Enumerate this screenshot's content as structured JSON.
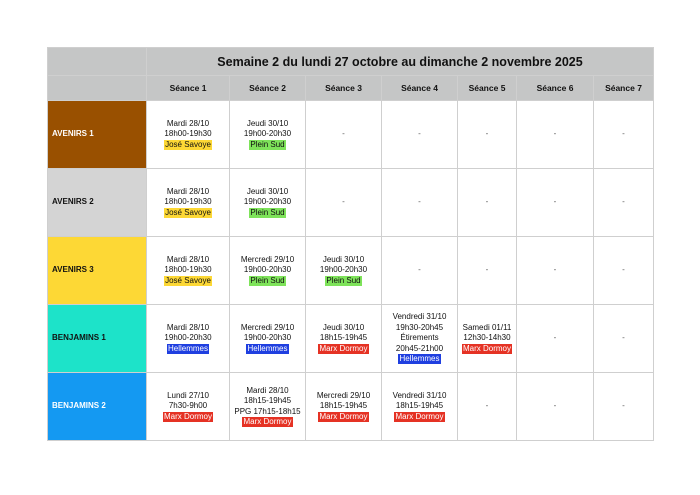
{
  "title": "Semaine 2 du lundi 27 octobre au dimanche 2 novembre 2025",
  "columns": [
    "Séance 1",
    "Séance 2",
    "Séance 3",
    "Séance 4",
    "Séance 5",
    "Séance 6",
    "Séance 7"
  ],
  "venue_colors": {
    "José Savoye": {
      "bg": "#fdd835",
      "fg": "#111111"
    },
    "Plein Sud": {
      "bg": "#7ee35a",
      "fg": "#111111"
    },
    "Hellemmes": {
      "bg": "#1f3fe0",
      "fg": "#ffffff"
    },
    "Marx Dormoy": {
      "bg": "#e53224",
      "fg": "#ffffff"
    }
  },
  "rows": [
    {
      "group": "AVENIRS 1",
      "color": "#995000",
      "light_text": true,
      "alt": false,
      "sessions": [
        {
          "lines": [
            "Mardi 28/10",
            "18h00-19h30"
          ],
          "venue": "José Savoye"
        },
        {
          "lines": [
            "Jeudi 30/10",
            "19h00-20h30"
          ],
          "venue": "Plein Sud"
        },
        {
          "lines": [
            "-"
          ],
          "venue": ""
        },
        {
          "lines": [
            "-"
          ],
          "venue": ""
        },
        {
          "lines": [
            "-"
          ],
          "venue": ""
        },
        {
          "lines": [
            "-"
          ],
          "venue": ""
        },
        {
          "lines": [
            "-"
          ],
          "venue": ""
        }
      ]
    },
    {
      "group": "AVENIRS 2",
      "color": "#d4d4d4",
      "light_text": false,
      "alt": true,
      "sessions": [
        {
          "lines": [
            "Mardi 28/10",
            "18h00-19h30"
          ],
          "venue": "José Savoye"
        },
        {
          "lines": [
            "Jeudi 30/10",
            "19h00-20h30"
          ],
          "venue": "Plein Sud"
        },
        {
          "lines": [
            "-"
          ],
          "venue": ""
        },
        {
          "lines": [
            "-"
          ],
          "venue": ""
        },
        {
          "lines": [
            "-"
          ],
          "venue": ""
        },
        {
          "lines": [
            "-"
          ],
          "venue": ""
        },
        {
          "lines": [
            "-"
          ],
          "venue": ""
        }
      ]
    },
    {
      "group": "AVENIRS 3",
      "color": "#fdd835",
      "light_text": false,
      "alt": false,
      "sessions": [
        {
          "lines": [
            "Mardi 28/10",
            "18h00-19h30"
          ],
          "venue": "José Savoye"
        },
        {
          "lines": [
            "Mercredi 29/10",
            "19h00-20h30"
          ],
          "venue": "Plein Sud"
        },
        {
          "lines": [
            "Jeudi 30/10",
            "19h00-20h30"
          ],
          "venue": "Plein Sud"
        },
        {
          "lines": [
            "-"
          ],
          "venue": ""
        },
        {
          "lines": [
            "-"
          ],
          "venue": ""
        },
        {
          "lines": [
            "-"
          ],
          "venue": ""
        },
        {
          "lines": [
            "-"
          ],
          "venue": ""
        }
      ]
    },
    {
      "group": "BENJAMINS 1",
      "color": "#1de3c9",
      "light_text": false,
      "alt": true,
      "sessions": [
        {
          "lines": [
            "Mardi 28/10",
            "19h00-20h30"
          ],
          "venue": "Hellemmes"
        },
        {
          "lines": [
            "Mercredi 29/10",
            "19h00-20h30"
          ],
          "venue": "Hellemmes"
        },
        {
          "lines": [
            "Jeudi 30/10",
            "18h15-19h45"
          ],
          "venue": "Marx Dormoy"
        },
        {
          "lines": [
            "Vendredi 31/10",
            "19h30-20h45",
            "Étirements",
            "20h45-21h00"
          ],
          "venue": "Hellemmes"
        },
        {
          "lines": [
            "Samedi 01/11",
            "12h30-14h30"
          ],
          "venue": "Marx Dormoy"
        },
        {
          "lines": [
            "-"
          ],
          "venue": ""
        },
        {
          "lines": [
            "-"
          ],
          "venue": ""
        }
      ]
    },
    {
      "group": "BENJAMINS 2",
      "color": "#1499f2",
      "light_text": true,
      "alt": false,
      "sessions": [
        {
          "lines": [
            "Lundi 27/10",
            "7h30-9h00"
          ],
          "venue": "Marx Dormoy"
        },
        {
          "lines": [
            "Mardi 28/10",
            "18h15-19h45",
            "PPG 17h15-18h15"
          ],
          "venue": "Marx Dormoy"
        },
        {
          "lines": [
            "Mercredi 29/10",
            "18h15-19h45"
          ],
          "venue": "Marx Dormoy"
        },
        {
          "lines": [
            "Vendredi 31/10",
            "18h15-19h45"
          ],
          "venue": "Marx Dormoy"
        },
        {
          "lines": [
            "-"
          ],
          "venue": ""
        },
        {
          "lines": [
            "-"
          ],
          "venue": ""
        },
        {
          "lines": [
            "-"
          ],
          "venue": ""
        }
      ]
    }
  ]
}
